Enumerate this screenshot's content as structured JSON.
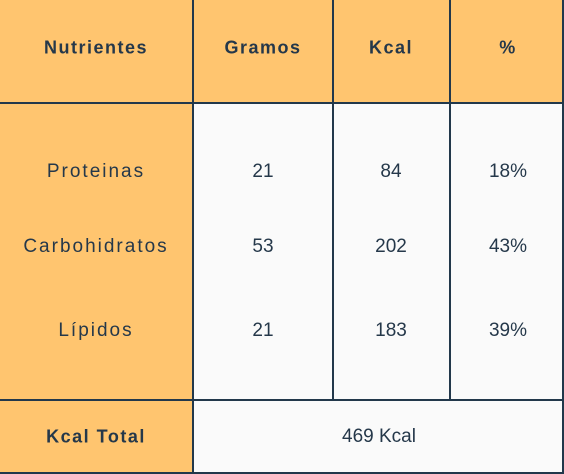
{
  "table": {
    "header": [
      "Nutrientes",
      "Gramos",
      "Kcal",
      "%"
    ],
    "rows": [
      [
        "Proteinas",
        "21",
        "84",
        "18%"
      ],
      [
        "Carbohidratos",
        "53",
        "202",
        "43%"
      ],
      [
        "Lípidos",
        "21",
        "183",
        "39%"
      ]
    ],
    "footer": {
      "label": "Kcal Total",
      "value": "469 Kcal"
    }
  }
}
